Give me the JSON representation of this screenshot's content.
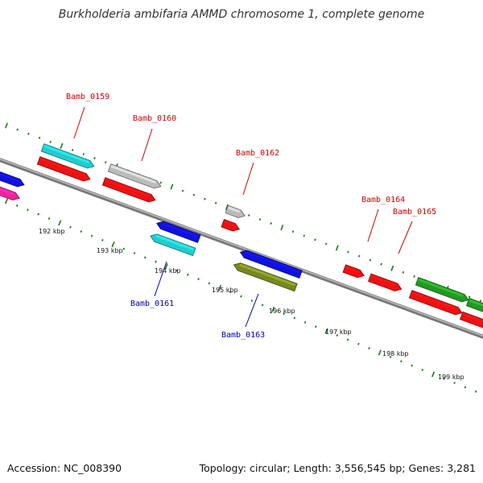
{
  "title": "Burkholderia ambifaria AMMD chromosome 1, complete genome",
  "footer": {
    "accession": "Accession: NC_008390",
    "topology": "Topology: circular; Length: 3,556,545 bp; Genes: 3,281"
  },
  "scale_labels": [
    "192 kbp",
    "193 kbp",
    "194 kbp",
    "195 kbp",
    "196 kbp",
    "197 kbp",
    "198 kbp",
    "199 kbp"
  ],
  "gene_labels": [
    {
      "name": "Bamb_0159",
      "strand": "forward"
    },
    {
      "name": "Bamb_0160",
      "strand": "forward"
    },
    {
      "name": "Bamb_0162",
      "strand": "forward"
    },
    {
      "name": "Bamb_0164",
      "strand": "forward"
    },
    {
      "name": "Bamb_0165",
      "strand": "forward"
    },
    {
      "name": "Bamb_0161",
      "strand": "reverse"
    },
    {
      "name": "Bamb_0163",
      "strand": "reverse"
    }
  ],
  "colors": {
    "forward_label": "#cc0000",
    "reverse_label": "#0000aa",
    "backbone": "#888888",
    "ticks": "#1a7a1a",
    "red": "#ee1111",
    "cyan": "#22cccc",
    "gray": "#bbbbbb",
    "blue": "#1111dd",
    "olive": "#778822",
    "green": "#229922",
    "magenta": "#ee2299"
  }
}
